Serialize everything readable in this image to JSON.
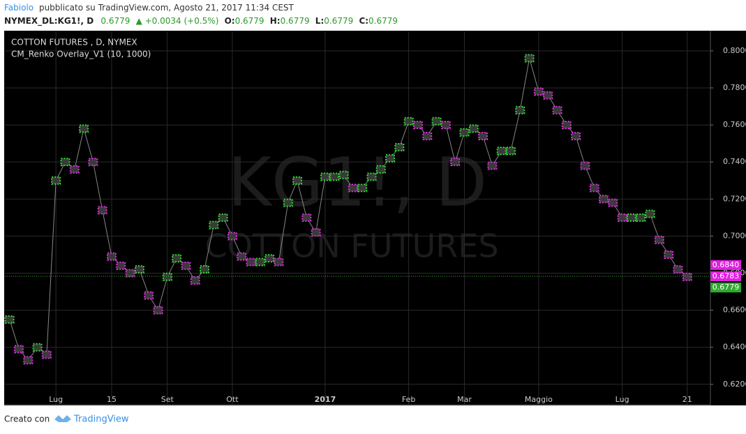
{
  "header": {
    "author": "Fabiolo",
    "published": "pubblicato su TradingView.com, Agosto 21, 2017 11:34 CEST",
    "symbol": "NYMEX_DL:KG1!, D",
    "last": "0.6779",
    "change": "▲ +0.0034 (+0.5%)",
    "ohlc": [
      {
        "label": "O:",
        "value": "0.6779"
      },
      {
        "label": "H:",
        "value": "0.6779"
      },
      {
        "label": "L:",
        "value": "0.6779"
      },
      {
        "label": "C:",
        "value": "0.6779"
      }
    ]
  },
  "chart_data": {
    "type": "renko",
    "title": "COTTON FUTURES , D, NYMEX",
    "subtitle": "CM_Renko Overlay_V1 (10, 1000)",
    "watermark": [
      "KG1!, D",
      "COTTON FUTURES"
    ],
    "categories": [
      null,
      null,
      null,
      null,
      null,
      "Lug",
      null,
      null,
      null,
      null,
      null,
      "15",
      null,
      null,
      null,
      null,
      null,
      "Set",
      null,
      null,
      null,
      null,
      null,
      null,
      "Ott",
      null,
      null,
      null,
      null,
      null,
      null,
      null,
      null,
      null,
      "2017",
      null,
      null,
      null,
      null,
      null,
      null,
      null,
      null,
      "Feb",
      null,
      null,
      null,
      null,
      null,
      "Mar",
      null,
      null,
      null,
      null,
      null,
      null,
      null,
      "Maggio",
      null,
      null,
      null,
      null,
      null,
      null,
      null,
      null,
      "Lug",
      null,
      null,
      null,
      null,
      null,
      null,
      "21",
      null,
      null
    ],
    "values": [
      0.655,
      0.639,
      0.633,
      0.64,
      0.636,
      0.73,
      0.74,
      0.736,
      0.758,
      0.74,
      0.714,
      0.689,
      0.684,
      0.68,
      0.682,
      0.668,
      0.66,
      0.678,
      0.688,
      0.684,
      0.676,
      0.682,
      0.706,
      0.71,
      0.7,
      0.689,
      0.686,
      0.686,
      0.688,
      0.686,
      0.718,
      0.73,
      0.71,
      0.702,
      0.732,
      0.732,
      0.733,
      0.726,
      0.726,
      0.732,
      0.736,
      0.742,
      0.748,
      0.762,
      0.76,
      0.754,
      0.762,
      0.76,
      0.74,
      0.756,
      0.758,
      0.754,
      0.738,
      0.746,
      0.746,
      0.768,
      0.796,
      0.778,
      0.776,
      0.768,
      0.76,
      0.754,
      0.738,
      0.726,
      0.72,
      0.718,
      0.71,
      0.71,
      0.71,
      0.712,
      0.698,
      0.69,
      0.682,
      0.678,
      null,
      null
    ],
    "up_color": "#33dd33",
    "down_color": "#dd33dd",
    "line_color": "#888888",
    "ylim": [
      0.609,
      0.8105
    ],
    "yticks": [
      {
        "value": 0.62,
        "label": "0.6200"
      },
      {
        "value": 0.64,
        "label": "0.6400"
      },
      {
        "value": 0.66,
        "label": "0.6600"
      },
      {
        "value": 0.68,
        "label": "0.6800"
      },
      {
        "value": 0.7,
        "label": "0.7000"
      },
      {
        "value": 0.72,
        "label": "0.7200"
      },
      {
        "value": 0.74,
        "label": "0.7400"
      },
      {
        "value": 0.76,
        "label": "0.7600"
      },
      {
        "value": 0.78,
        "label": "0.7800"
      },
      {
        "value": 0.8,
        "label": "0.8000"
      }
    ],
    "price_markers": [
      {
        "value": 0.684,
        "label": "0.6840",
        "color": "#e020e0"
      },
      {
        "value": 0.6783,
        "label": "0.6783",
        "color": "#e020e0"
      },
      {
        "value": 0.6779,
        "label": "0.6779",
        "color": "#2eaa2e"
      }
    ],
    "grid": true
  },
  "footer": {
    "made_with": "Creato con",
    "brand": "TradingView"
  }
}
